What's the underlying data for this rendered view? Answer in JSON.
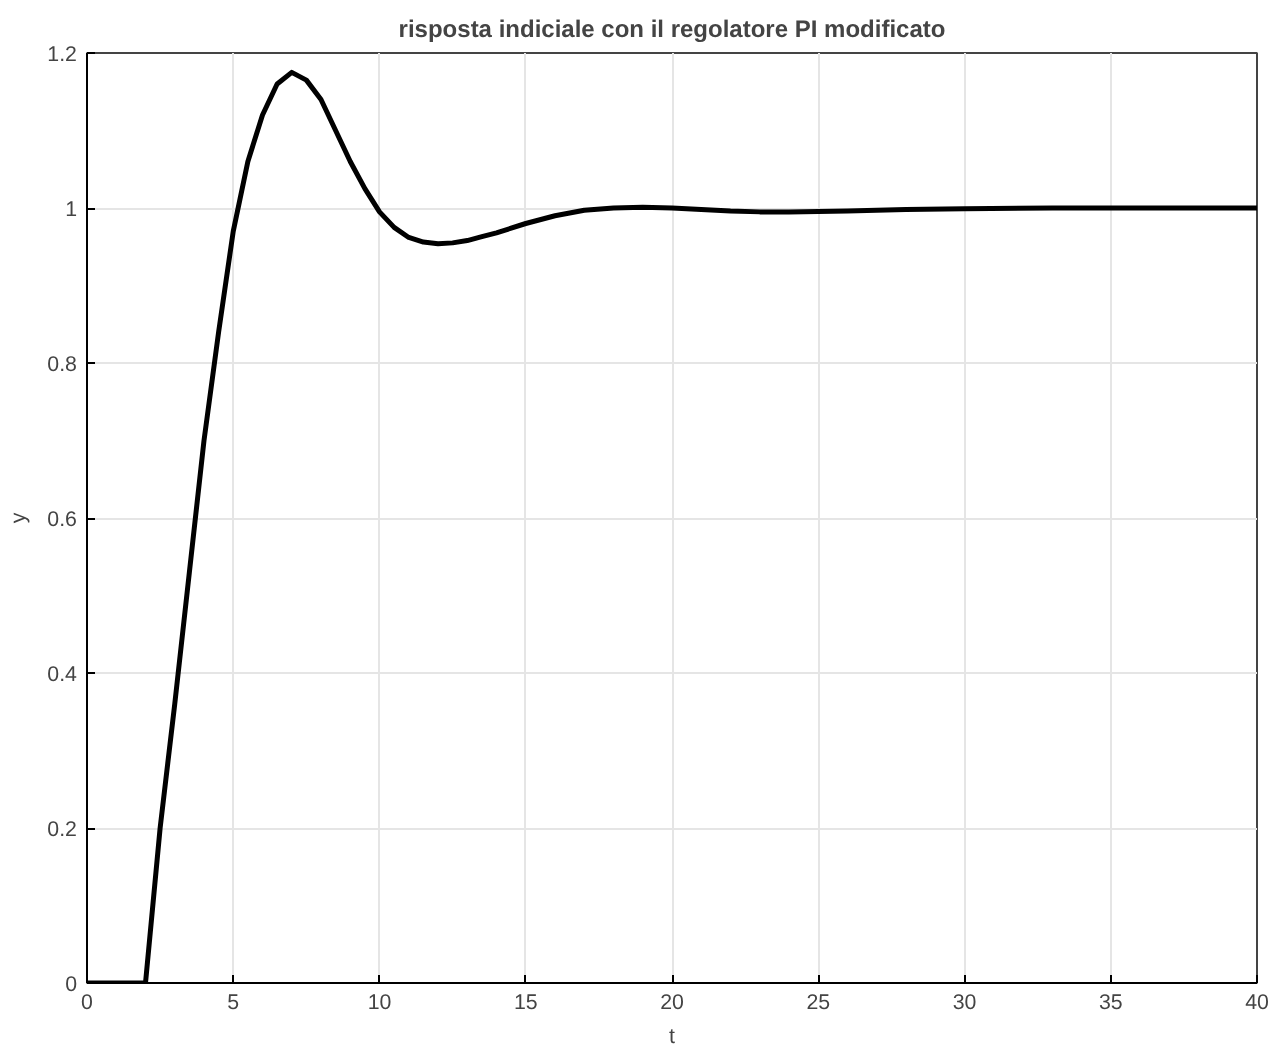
{
  "chart_data": {
    "type": "line",
    "title": "risposta indiciale con il regolatore PI modificato",
    "xlabel": "t",
    "ylabel": "y",
    "x": [
      0,
      1,
      2,
      2.5,
      3,
      3.5,
      4,
      4.5,
      5,
      5.5,
      6,
      6.5,
      7,
      7.5,
      8,
      8.5,
      9,
      9.5,
      10,
      10.5,
      11,
      11.5,
      12,
      12.5,
      13,
      13.5,
      14,
      15,
      16,
      17,
      18,
      19,
      20,
      21,
      22,
      23,
      24,
      26,
      28,
      30,
      33,
      36,
      40
    ],
    "series": [
      {
        "color": "#000000",
        "values": [
          0,
          0,
          0,
          0.2,
          0.36,
          0.53,
          0.7,
          0.84,
          0.97,
          1.06,
          1.12,
          1.16,
          1.175,
          1.165,
          1.14,
          1.1,
          1.06,
          1.025,
          0.995,
          0.975,
          0.962,
          0.956,
          0.954,
          0.955,
          0.958,
          0.963,
          0.968,
          0.98,
          0.99,
          0.997,
          1.0,
          1.001,
          1.0,
          0.998,
          0.996,
          0.995,
          0.995,
          0.996,
          0.998,
          0.999,
          1.0,
          1.0,
          1.0
        ]
      }
    ],
    "xlim": [
      0,
      40
    ],
    "ylim": [
      0,
      1.2
    ],
    "xticks": [
      0,
      5,
      10,
      15,
      20,
      25,
      30,
      35,
      40
    ],
    "yticks": [
      0,
      0.2,
      0.4,
      0.6,
      0.8,
      1,
      1.2
    ],
    "grid": true,
    "line_style": "solid",
    "marker": "none"
  }
}
